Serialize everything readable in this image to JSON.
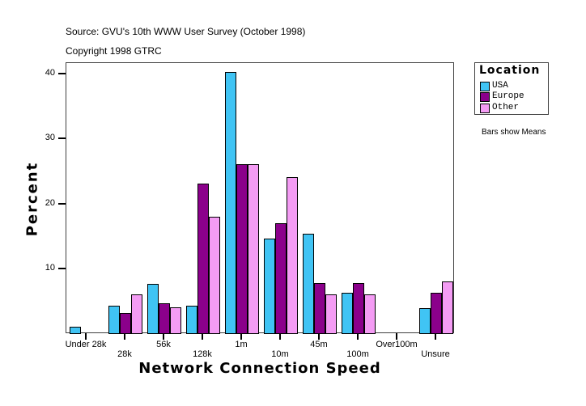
{
  "header": {
    "source": "Source: GVU's 10th WWW User Survey (October 1998)",
    "copyright": "Copyright 1998 GTRC"
  },
  "legend": {
    "title": "Location",
    "items": [
      {
        "label": "USA",
        "color": "#40C4F4"
      },
      {
        "label": "Europe",
        "color": "#8B008B"
      },
      {
        "label": "Other",
        "color": "#F49CF4"
      }
    ]
  },
  "note": "Bars show Means",
  "chart_data": {
    "type": "bar",
    "title": "",
    "xlabel": "Network Connection Speed",
    "ylabel": "Percent",
    "ylim": [
      0,
      41.5
    ],
    "yticks": [
      10,
      20,
      30,
      40
    ],
    "grid": false,
    "legend_position": "right",
    "categories": [
      "Under 28k",
      "28k",
      "56k",
      "128k",
      "1m",
      "10m",
      "45m",
      "100m",
      "Over100m",
      "Unsure"
    ],
    "series": [
      {
        "name": "USA",
        "color": "#40C4F4",
        "values": [
          1.0,
          4.2,
          7.6,
          4.2,
          40.2,
          14.6,
          15.3,
          6.2,
          0,
          3.9
        ]
      },
      {
        "name": "Europe",
        "color": "#8B008B",
        "values": [
          0,
          3.1,
          4.6,
          23.0,
          26.1,
          16.9,
          7.7,
          7.7,
          0,
          6.2
        ]
      },
      {
        "name": "Other",
        "color": "#F49CF4",
        "values": [
          0,
          6.0,
          4.0,
          18.0,
          26.0,
          24.0,
          6.0,
          6.0,
          0,
          8.0
        ]
      }
    ]
  }
}
